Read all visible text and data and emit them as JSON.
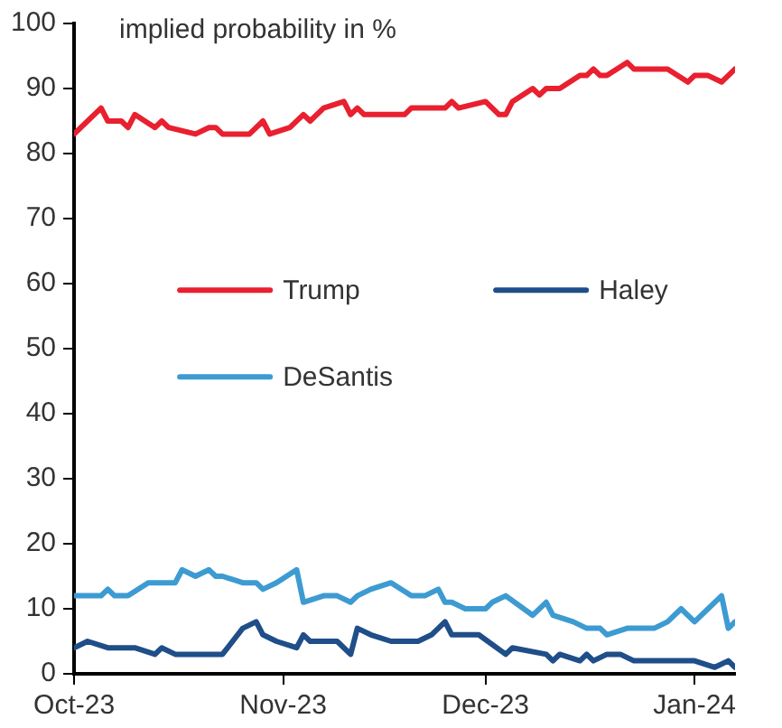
{
  "chart_data": {
    "type": "line",
    "ylabel": "implied probability in %",
    "xlim": [
      "2023-10-01",
      "2024-01-07"
    ],
    "xticks": [
      {
        "value": "2023-10-01",
        "label": "Oct-23"
      },
      {
        "value": "2023-11-01",
        "label": "Nov-23"
      },
      {
        "value": "2023-12-01",
        "label": "Dec-23"
      },
      {
        "value": "2024-01-01",
        "label": "Jan-24"
      }
    ],
    "ylim": [
      0,
      100
    ],
    "yticks": [
      0,
      10,
      20,
      30,
      40,
      50,
      60,
      70,
      80,
      90,
      100
    ],
    "grid": false,
    "legend": "center left",
    "marker": "none",
    "line_style": "solid",
    "series": [
      {
        "name": "Trump",
        "color": "#e8202f",
        "x": [
          "2023-10-01",
          "2023-10-05",
          "2023-10-06",
          "2023-10-08",
          "2023-10-09",
          "2023-10-10",
          "2023-10-13",
          "2023-10-14",
          "2023-10-15",
          "2023-10-19",
          "2023-10-21",
          "2023-10-22",
          "2023-10-23",
          "2023-10-27",
          "2023-10-29",
          "2023-10-30",
          "2023-11-02",
          "2023-11-04",
          "2023-11-05",
          "2023-11-07",
          "2023-11-10",
          "2023-11-11",
          "2023-11-12",
          "2023-11-13",
          "2023-11-19",
          "2023-11-20",
          "2023-11-25",
          "2023-11-26",
          "2023-11-27",
          "2023-12-01",
          "2023-12-03",
          "2023-12-04",
          "2023-12-05",
          "2023-12-08",
          "2023-12-09",
          "2023-12-10",
          "2023-12-12",
          "2023-12-15",
          "2023-12-16",
          "2023-12-17",
          "2023-12-18",
          "2023-12-19",
          "2023-12-22",
          "2023-12-23",
          "2023-12-28",
          "2023-12-31",
          "2024-01-01",
          "2024-01-03",
          "2024-01-05",
          "2024-01-07"
        ],
        "values": [
          83,
          87,
          85,
          85,
          84,
          86,
          84,
          85,
          84,
          83,
          84,
          84,
          83,
          83,
          85,
          83,
          84,
          86,
          85,
          87,
          88,
          86,
          87,
          86,
          86,
          87,
          87,
          88,
          87,
          88,
          86,
          86,
          88,
          90,
          89,
          90,
          90,
          92,
          92,
          93,
          92,
          92,
          94,
          93,
          93,
          91,
          92,
          92,
          91,
          93
        ]
      },
      {
        "name": "Haley",
        "color": "#1f4e89",
        "x": [
          "2023-10-01",
          "2023-10-03",
          "2023-10-06",
          "2023-10-10",
          "2023-10-13",
          "2023-10-14",
          "2023-10-16",
          "2023-10-23",
          "2023-10-26",
          "2023-10-28",
          "2023-10-29",
          "2023-10-31",
          "2023-11-03",
          "2023-11-04",
          "2023-11-05",
          "2023-11-09",
          "2023-11-11",
          "2023-11-12",
          "2023-11-14",
          "2023-11-17",
          "2023-11-21",
          "2023-11-23",
          "2023-11-25",
          "2023-11-26",
          "2023-11-30",
          "2023-12-04",
          "2023-12-05",
          "2023-12-10",
          "2023-12-11",
          "2023-12-12",
          "2023-12-15",
          "2023-12-16",
          "2023-12-17",
          "2023-12-19",
          "2023-12-21",
          "2023-12-23",
          "2024-01-01",
          "2024-01-04",
          "2024-01-06",
          "2024-01-07"
        ],
        "values": [
          4,
          5,
          4,
          4,
          3,
          4,
          3,
          3,
          7,
          8,
          6,
          5,
          4,
          6,
          5,
          5,
          3,
          7,
          6,
          5,
          5,
          6,
          8,
          6,
          6,
          3,
          4,
          3,
          2,
          3,
          2,
          3,
          2,
          3,
          3,
          2,
          2,
          1,
          2,
          1
        ]
      },
      {
        "name": "DeSantis",
        "color": "#3d9bd2",
        "x": [
          "2023-10-01",
          "2023-10-05",
          "2023-10-06",
          "2023-10-07",
          "2023-10-09",
          "2023-10-12",
          "2023-10-13",
          "2023-10-16",
          "2023-10-17",
          "2023-10-19",
          "2023-10-21",
          "2023-10-22",
          "2023-10-23",
          "2023-10-26",
          "2023-10-28",
          "2023-10-29",
          "2023-10-31",
          "2023-11-03",
          "2023-11-04",
          "2023-11-07",
          "2023-11-09",
          "2023-11-11",
          "2023-11-12",
          "2023-11-14",
          "2023-11-17",
          "2023-11-20",
          "2023-11-22",
          "2023-11-24",
          "2023-11-25",
          "2023-11-26",
          "2023-11-28",
          "2023-12-01",
          "2023-12-02",
          "2023-12-04",
          "2023-12-08",
          "2023-12-10",
          "2023-12-11",
          "2023-12-14",
          "2023-12-16",
          "2023-12-18",
          "2023-12-19",
          "2023-12-22",
          "2023-12-26",
          "2023-12-28",
          "2023-12-30",
          "2024-01-01",
          "2024-01-05",
          "2024-01-06",
          "2024-01-07"
        ],
        "values": [
          12,
          12,
          13,
          12,
          12,
          14,
          14,
          14,
          16,
          15,
          16,
          15,
          15,
          14,
          14,
          13,
          14,
          16,
          11,
          12,
          12,
          11,
          12,
          13,
          14,
          12,
          12,
          13,
          11,
          11,
          10,
          10,
          11,
          12,
          9,
          11,
          9,
          8,
          7,
          7,
          6,
          7,
          7,
          8,
          10,
          8,
          12,
          7,
          8
        ]
      }
    ]
  }
}
